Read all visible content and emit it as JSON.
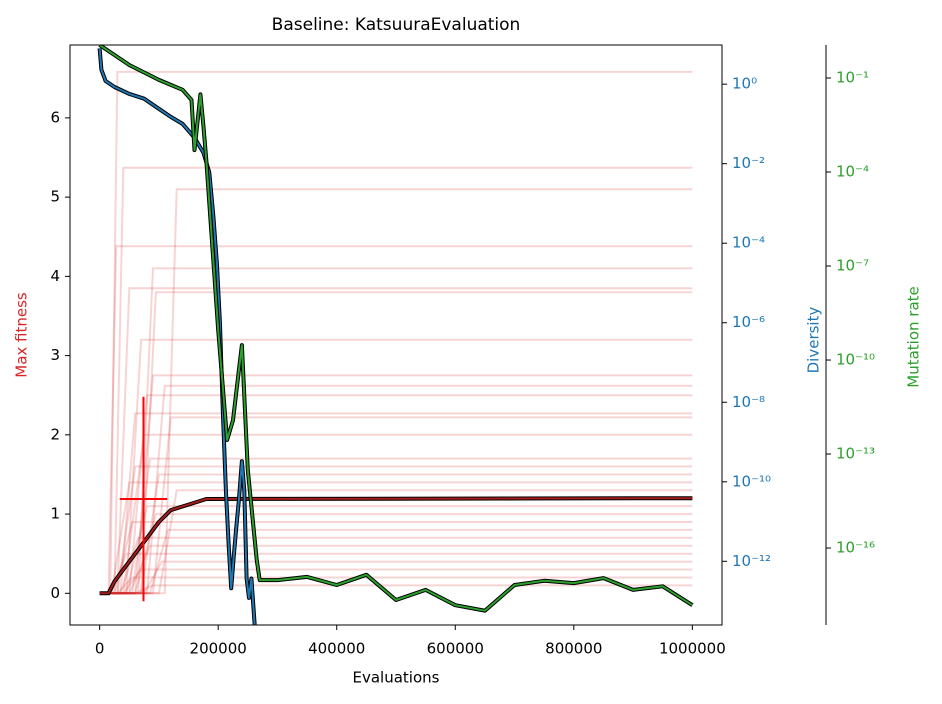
{
  "chart_data": {
    "type": "line",
    "title": "Baseline: KatsuuraEvaluation",
    "xlabel": "Evaluations",
    "ylabel": "Max fitness",
    "y2label": "Diversity",
    "y3label": "Mutation rate",
    "xlim": [
      -50000,
      1050000
    ],
    "xticks": [
      0,
      200000,
      400000,
      600000,
      800000,
      1000000
    ],
    "ylim": [
      -0.4,
      6.92
    ],
    "yticks": [
      0,
      1,
      2,
      3,
      4,
      5,
      6
    ],
    "y2lim": [
      2.5e-14,
      9.66
    ],
    "y2log": true,
    "y2ticks": [
      {
        "value": 1,
        "label": "10⁰"
      },
      {
        "value": 0.01,
        "label": "10⁻²"
      },
      {
        "value": 0.0001,
        "label": "10⁻⁴"
      },
      {
        "value": 1e-06,
        "label": "10⁻⁶"
      },
      {
        "value": 1e-08,
        "label": "10⁻⁸"
      },
      {
        "value": 1e-10,
        "label": "10⁻¹⁰"
      },
      {
        "value": 1e-12,
        "label": "10⁻¹²"
      }
    ],
    "y3lim": [
      3.5e-19,
      1.13
    ],
    "y3log": true,
    "y3ticks": [
      {
        "value": 0.1,
        "label": "10⁻¹"
      },
      {
        "value": 0.0001,
        "label": "10⁻⁴"
      },
      {
        "value": 1e-07,
        "label": "10⁻⁷"
      },
      {
        "value": 1e-10,
        "label": "10⁻¹⁰"
      },
      {
        "value": 1e-13,
        "label": "10⁻¹³"
      },
      {
        "value": 1e-16,
        "label": "10⁻¹⁶"
      }
    ],
    "run_color": "#d62728",
    "runs": [
      {
        "x": [
          0,
          18000,
          30000,
          1000000
        ],
        "values": [
          0,
          0,
          6.58,
          6.58
        ]
      },
      {
        "x": [
          0,
          25000,
          40000,
          1000000
        ],
        "values": [
          0,
          0,
          5.37,
          5.37
        ]
      },
      {
        "x": [
          0,
          110000,
          130000,
          1000000
        ],
        "values": [
          0,
          0,
          5.1,
          5.1
        ]
      },
      {
        "x": [
          0,
          15000,
          28000,
          1000000
        ],
        "values": [
          0,
          0,
          4.38,
          4.38
        ]
      },
      {
        "x": [
          0,
          65000,
          90000,
          1000000
        ],
        "values": [
          0,
          0,
          4.1,
          4.1
        ]
      },
      {
        "x": [
          0,
          30000,
          50000,
          1000000
        ],
        "values": [
          0,
          0,
          3.85,
          3.85
        ]
      },
      {
        "x": [
          0,
          70000,
          95000,
          1000000
        ],
        "values": [
          0,
          0,
          3.8,
          3.8
        ]
      },
      {
        "x": [
          0,
          45000,
          70000,
          1000000
        ],
        "values": [
          0,
          0,
          3.2,
          3.2
        ]
      },
      {
        "x": [
          0,
          60000,
          90000,
          1000000
        ],
        "values": [
          0,
          0,
          2.75,
          2.75
        ]
      },
      {
        "x": [
          0,
          80000,
          110000,
          1000000
        ],
        "values": [
          0,
          0,
          2.62,
          2.62
        ]
      },
      {
        "x": [
          0,
          50000,
          80000,
          1000000
        ],
        "values": [
          0,
          0,
          2.5,
          2.5
        ]
      },
      {
        "x": [
          0,
          35000,
          60000,
          1000000
        ],
        "values": [
          0,
          0,
          2.27,
          2.27
        ]
      },
      {
        "x": [
          0,
          90000,
          120000,
          1000000
        ],
        "values": [
          0,
          0,
          2.22,
          2.22
        ]
      },
      {
        "x": [
          0,
          40000,
          75000,
          1000000
        ],
        "values": [
          0,
          0,
          2.0,
          2.0
        ]
      },
      {
        "x": [
          0,
          55000,
          85000,
          1000000
        ],
        "values": [
          0,
          0,
          1.7,
          1.7
        ]
      },
      {
        "x": [
          0,
          30000,
          60000,
          1000000
        ],
        "values": [
          0,
          0,
          1.6,
          1.6
        ]
      },
      {
        "x": [
          0,
          70000,
          100000,
          1000000
        ],
        "values": [
          0,
          0,
          1.5,
          1.5
        ]
      },
      {
        "x": [
          0,
          20000,
          50000,
          1000000
        ],
        "values": [
          0,
          0,
          1.4,
          1.4
        ]
      },
      {
        "x": [
          0,
          100000,
          130000,
          1000000
        ],
        "values": [
          0,
          0,
          1.3,
          1.3
        ]
      },
      {
        "x": [
          0,
          45000,
          80000,
          1000000
        ],
        "values": [
          0,
          0,
          1.1,
          1.1
        ]
      },
      {
        "x": [
          0,
          60000,
          95000,
          1000000
        ],
        "values": [
          0,
          0,
          1.0,
          1.0
        ]
      },
      {
        "x": [
          0,
          25000,
          55000,
          1000000
        ],
        "values": [
          0,
          0,
          0.9,
          0.9
        ]
      },
      {
        "x": [
          0,
          85000,
          115000,
          1000000
        ],
        "values": [
          0,
          0,
          0.8,
          0.8
        ]
      },
      {
        "x": [
          0,
          35000,
          65000,
          1000000
        ],
        "values": [
          0,
          0,
          0.7,
          0.7
        ]
      },
      {
        "x": [
          0,
          50000,
          85000,
          1000000
        ],
        "values": [
          0,
          0,
          0.6,
          0.6
        ]
      },
      {
        "x": [
          0,
          20000,
          45000,
          1000000
        ],
        "values": [
          0,
          0,
          0.5,
          0.5
        ]
      },
      {
        "x": [
          0,
          75000,
          105000,
          1000000
        ],
        "values": [
          0,
          0,
          0.4,
          0.4
        ]
      },
      {
        "x": [
          0,
          40000,
          70000,
          1000000
        ],
        "values": [
          0,
          0,
          0.3,
          0.3
        ]
      },
      {
        "x": [
          0,
          30000,
          55000,
          1000000
        ],
        "values": [
          0,
          0,
          0.2,
          0.2
        ]
      },
      {
        "x": [
          0,
          60000,
          90000,
          1000000
        ],
        "values": [
          0,
          0,
          0.1,
          0.1
        ]
      }
    ],
    "series": [
      {
        "axis": "y",
        "color": "#a51c1c",
        "x": [
          0,
          15000,
          25000,
          40000,
          60000,
          80000,
          100000,
          120000,
          150000,
          180000,
          1000000
        ],
        "values": [
          0,
          0,
          0.15,
          0.3,
          0.5,
          0.7,
          0.9,
          1.05,
          1.12,
          1.19,
          1.2
        ]
      },
      {
        "axis": "y2",
        "color": "#1f77b4",
        "x": [
          0,
          3000,
          10000,
          25000,
          50000,
          75000,
          100000,
          120000,
          140000,
          160000,
          175000,
          185000,
          192000,
          198000,
          203000,
          208000,
          213000,
          218000,
          222000,
          226000,
          230000,
          235000,
          240000,
          244000,
          248000,
          252000,
          256000,
          262000
        ],
        "values": [
          8,
          2.3,
          1.2,
          0.85,
          0.57,
          0.43,
          0.24,
          0.15,
          0.1,
          0.045,
          0.019,
          0.006,
          0.00047,
          2.8e-05,
          9e-07,
          5.4e-09,
          6e-11,
          2e-12,
          2.1e-13,
          1.2e-12,
          6e-12,
          3.5e-11,
          3.3e-10,
          6e-11,
          3.7e-13,
          1.2e-13,
          3.7e-13,
          2.1e-14
        ]
      },
      {
        "axis": "y3",
        "color": "#2ca02c",
        "x": [
          0,
          50000,
          100000,
          140000,
          155000,
          160000,
          170000,
          175000,
          180000,
          200000,
          215000,
          225000,
          235000,
          240000,
          250000,
          265000,
          270000,
          300000,
          350000,
          400000,
          450000,
          500000,
          550000,
          600000,
          650000,
          700000,
          750000,
          800000,
          850000,
          900000,
          950000,
          1000000
        ],
        "values": [
          1.13,
          0.26,
          0.087,
          0.042,
          0.02,
          0.0005,
          0.03,
          0.003,
          0.00024,
          9e-10,
          2.8e-13,
          1.2e-12,
          4.8e-11,
          3e-10,
          3.1e-14,
          4.2e-17,
          9.5e-18,
          9.5e-18,
          1.2e-17,
          6.6e-18,
          1.4e-17,
          2.2e-18,
          4.6e-18,
          1.5e-18,
          1e-18,
          6.6e-18,
          9e-18,
          7.6e-18,
          1.1e-17,
          4.6e-18,
          6e-18,
          1.5e-18
        ]
      }
    ],
    "errorbar": {
      "x": 74000,
      "y": 1.19,
      "xerr": 40000,
      "yerr": 1.29,
      "color": "#ff0000"
    }
  }
}
